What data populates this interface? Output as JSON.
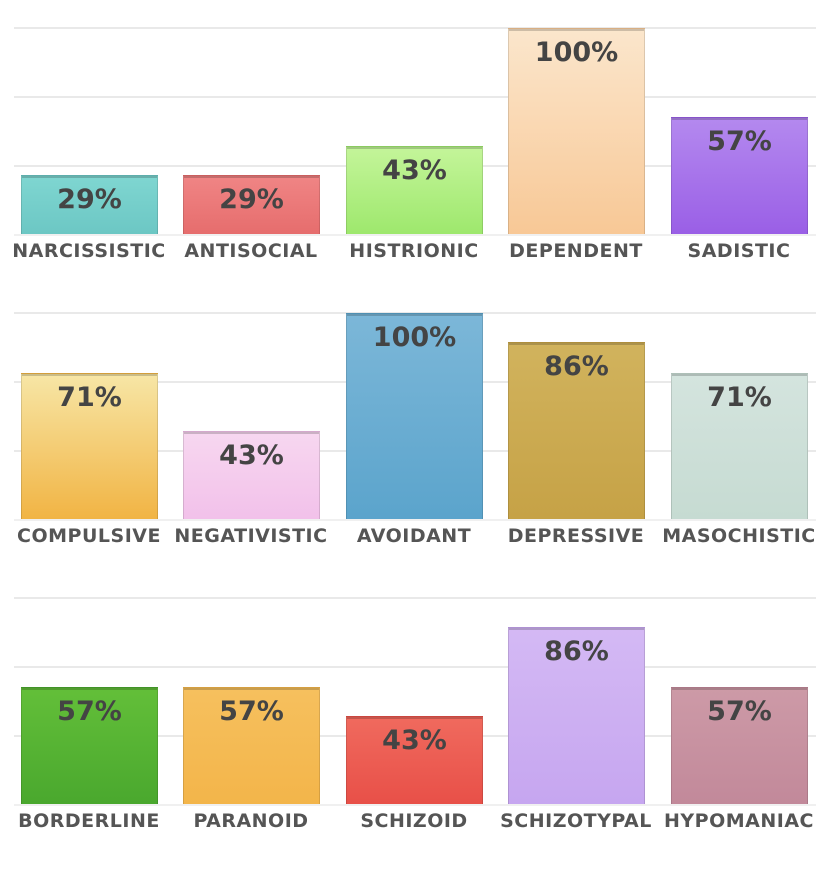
{
  "chart_data": [
    {
      "type": "bar",
      "categories": [
        "NARCISSISTIC",
        "ANTISOCIAL",
        "HISTRIONIC",
        "DEPENDENT",
        "SADISTIC"
      ],
      "values": [
        29,
        29,
        43,
        100,
        57
      ],
      "value_labels": [
        "29%",
        "29%",
        "43%",
        "100%",
        "57%"
      ],
      "colors": [
        [
          "#7fd6d1",
          "#6cc7c4"
        ],
        [
          "#f08585",
          "#e66d6d"
        ],
        [
          "#c4f59a",
          "#9ee86d"
        ],
        [
          "#fbe6cc",
          "#f8c896"
        ],
        [
          "#b489ef",
          "#9a5fe6"
        ]
      ],
      "ylim": [
        0,
        100
      ],
      "title": "",
      "xlabel": "",
      "ylabel": ""
    },
    {
      "type": "bar",
      "categories": [
        "COMPULSIVE",
        "NEGATIVISTIC",
        "AVOIDANT",
        "DEPRESSIVE",
        "MASOCHISTIC"
      ],
      "values": [
        71,
        43,
        100,
        86,
        71
      ],
      "value_labels": [
        "71%",
        "43%",
        "100%",
        "86%",
        "71%"
      ],
      "colors": [
        [
          "#f7e6a6",
          "#f1b444"
        ],
        [
          "#f7d7f0",
          "#f2c1ea"
        ],
        [
          "#7cb7d8",
          "#5ba4cc"
        ],
        [
          "#d1b35d",
          "#c6a246"
        ],
        [
          "#d4e4de",
          "#c6dbd2"
        ]
      ],
      "ylim": [
        0,
        100
      ],
      "title": "",
      "xlabel": "",
      "ylabel": ""
    },
    {
      "type": "bar",
      "categories": [
        "BORDERLINE",
        "PARANOID",
        "SCHIZOID",
        "SCHIZOTYPAL",
        "HYPOMANIAC"
      ],
      "values": [
        57,
        57,
        43,
        86,
        57
      ],
      "value_labels": [
        "57%",
        "57%",
        "43%",
        "86%",
        "57%"
      ],
      "colors": [
        [
          "#63bf39",
          "#4aa82e"
        ],
        [
          "#f6c05e",
          "#f3b54a"
        ],
        [
          "#f06a5e",
          "#e85048"
        ],
        [
          "#d4b9f4",
          "#c6a6f0"
        ],
        [
          "#cd9aa7",
          "#c2899a"
        ]
      ],
      "ylim": [
        0,
        100
      ],
      "title": "",
      "xlabel": "",
      "ylabel": ""
    }
  ]
}
